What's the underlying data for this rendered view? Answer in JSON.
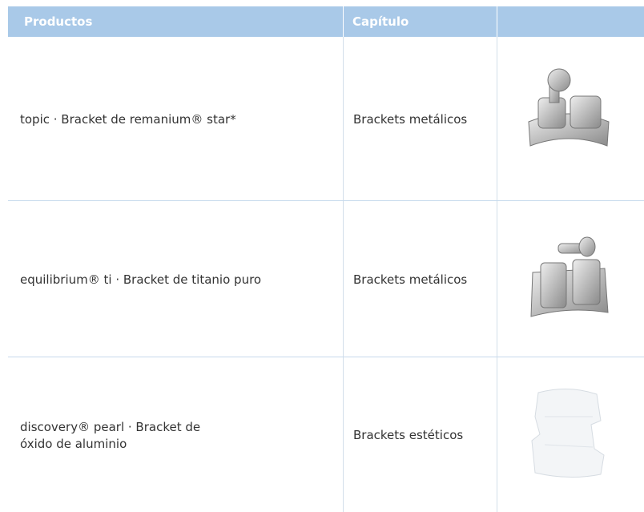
{
  "table": {
    "header": [
      "Productos",
      "Capítulo"
    ],
    "rows": [
      {
        "product": [
          "topic  · Bracket de remanium® star*"
        ],
        "chapter": "Brackets metálicos"
      },
      {
        "product": [
          "equilibrium® ti · Bracket de titanio puro"
        ],
        "chapter": "Brackets metálicos"
      },
      {
        "product": [
          "discovery® pearl · Bracket de",
          "óxido de aluminio"
        ],
        "chapter": "Brackets estéticos"
      }
    ]
  }
}
